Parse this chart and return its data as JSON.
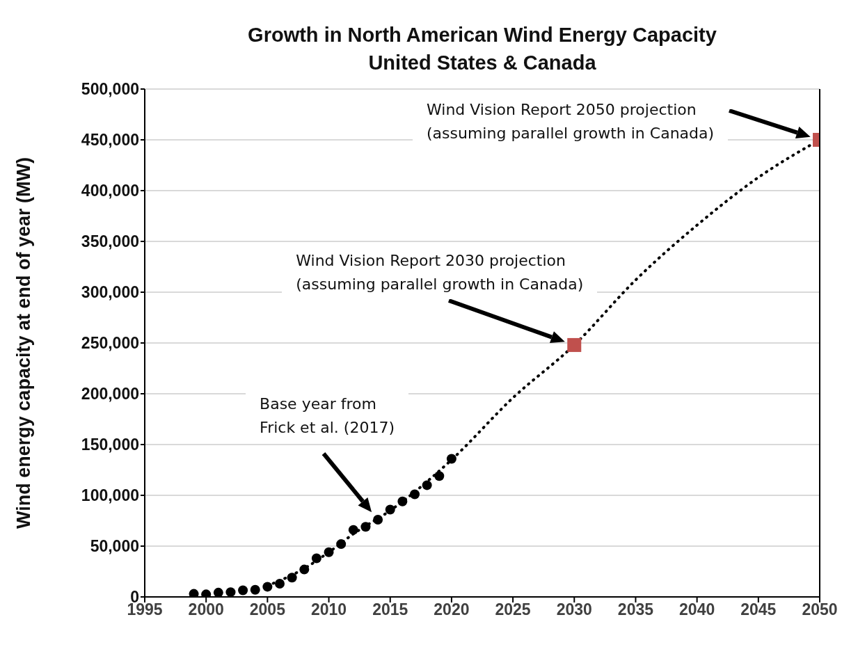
{
  "chart_data": {
    "type": "scatter",
    "title": "Growth in North American Wind Energy Capacity\nUnited States & Canada",
    "ylabel": "Wind energy capacity at end of year (MW)",
    "xlim": [
      1995,
      2050
    ],
    "xticks": [
      1995,
      2000,
      2005,
      2010,
      2015,
      2020,
      2025,
      2030,
      2035,
      2040,
      2045,
      2050
    ],
    "ylim": [
      0,
      500000
    ],
    "yticks": [
      {
        "value": 0,
        "label": "0"
      },
      {
        "value": 50000,
        "label": "50,000"
      },
      {
        "value": 100000,
        "label": "100,000"
      },
      {
        "value": 150000,
        "label": "150,000"
      },
      {
        "value": 200000,
        "label": "200,000"
      },
      {
        "value": 250000,
        "label": "250,000"
      },
      {
        "value": 300000,
        "label": "300,000"
      },
      {
        "value": 350000,
        "label": "350,000"
      },
      {
        "value": 400000,
        "label": "400,000"
      },
      {
        "value": 450000,
        "label": "450,000"
      },
      {
        "value": 500000,
        "label": "500,000"
      }
    ],
    "grid": "y",
    "series": [
      {
        "type": "line",
        "line_style": "dotted",
        "marker": "none",
        "color": "#000000",
        "x": [
          2005,
          2008,
          2010,
          2012,
          2015,
          2020,
          2025,
          2030,
          2035,
          2040,
          2045,
          2050
        ],
        "values": [
          11000,
          28000,
          44000,
          62000,
          85000,
          135000,
          196000,
          248000,
          312000,
          366000,
          413000,
          450000
        ]
      },
      {
        "marker": "circle",
        "color": "#000000",
        "x": [
          1999,
          2000,
          2001,
          2002,
          2003,
          2004,
          2005,
          2006,
          2007,
          2008,
          2009,
          2010,
          2011,
          2012,
          2013,
          2014,
          2015,
          2016,
          2017,
          2018,
          2019,
          2020
        ],
        "values": [
          3000,
          2500,
          4200,
          4700,
          6500,
          7000,
          10000,
          13000,
          19000,
          27000,
          38000,
          44000,
          52000,
          66000,
          69000,
          76000,
          86000,
          94000,
          101000,
          110000,
          119000,
          136000
        ]
      },
      {
        "marker": "square",
        "color": "#c0504d",
        "x": [
          2030,
          2050
        ],
        "values": [
          248000,
          450000
        ]
      }
    ],
    "annotations": [
      "Wind Vision Report 2050 projection\n(assuming parallel growth in Canada)",
      "Wind Vision Report 2030 projection\n(assuming parallel growth in Canada)",
      "Base year from\nFrick et al. (2017)"
    ]
  }
}
